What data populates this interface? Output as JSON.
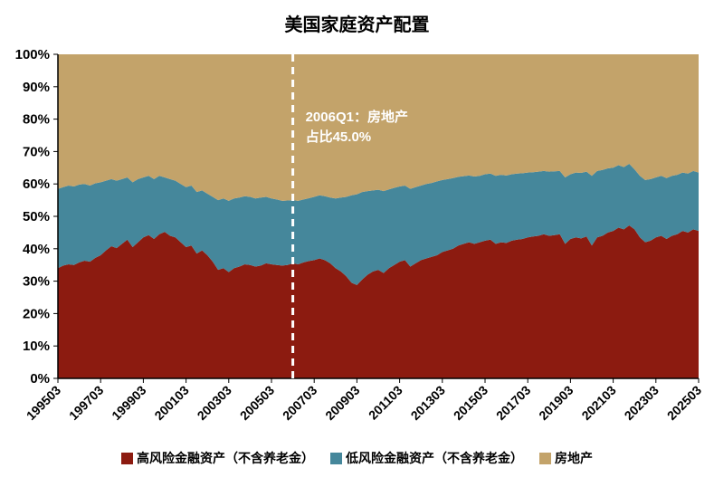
{
  "chart_data": {
    "type": "area",
    "stacked": true,
    "stack_total": 100,
    "title": "美国家庭资产配置",
    "ylim": [
      0,
      100
    ],
    "grid": false,
    "legend_position": "bottom",
    "y_ticks": [
      "0%",
      "10%",
      "20%",
      "30%",
      "40%",
      "50%",
      "60%",
      "70%",
      "80%",
      "90%",
      "100%"
    ],
    "x_start": "199503",
    "x_frequency": "quarterly",
    "x_tick_every": 8,
    "x_tick_labels": [
      "199503",
      "199703",
      "199903",
      "200103",
      "200303",
      "200503",
      "200703",
      "200903",
      "201103",
      "201303",
      "201503",
      "201703",
      "201903",
      "202103",
      "202303",
      "202503"
    ],
    "annotation": {
      "index": 44,
      "x_label": "200603",
      "label_lines": [
        "2006Q1：房地产",
        "占比45.0%"
      ],
      "value": 45.0,
      "line_style": "dashed-white"
    },
    "series": [
      {
        "name": "高风险金融资产（不含养老金）",
        "color": "#8C1B10",
        "values": [
          34.0,
          34.8,
          35.2,
          35.0,
          35.8,
          36.3,
          36.0,
          37.2,
          38.0,
          39.5,
          40.8,
          40.2,
          41.5,
          42.8,
          40.5,
          42.0,
          43.5,
          44.2,
          43.0,
          44.5,
          45.2,
          44.0,
          43.5,
          42.0,
          40.5,
          41.0,
          38.5,
          39.5,
          38.0,
          36.0,
          33.5,
          34.0,
          32.8,
          34.0,
          34.5,
          35.2,
          35.0,
          34.5,
          34.8,
          35.5,
          35.2,
          35.0,
          34.8,
          35.0,
          35.5,
          35.2,
          35.8,
          36.2,
          36.5,
          37.0,
          36.5,
          35.5,
          34.0,
          33.0,
          31.5,
          29.5,
          28.8,
          30.5,
          32.0,
          33.0,
          33.5,
          32.5,
          34.0,
          35.0,
          36.0,
          36.5,
          34.5,
          35.5,
          36.5,
          37.0,
          37.5,
          38.0,
          39.0,
          39.5,
          40.0,
          41.0,
          41.5,
          42.0,
          41.5,
          42.0,
          42.5,
          42.8,
          41.5,
          42.0,
          41.8,
          42.5,
          42.8,
          43.0,
          43.5,
          43.8,
          44.0,
          44.5,
          44.0,
          44.2,
          44.5,
          41.5,
          43.0,
          43.5,
          43.2,
          43.8,
          41.0,
          43.5,
          44.0,
          45.0,
          45.5,
          46.5,
          46.0,
          47.2,
          46.0,
          43.5,
          42.0,
          42.5,
          43.5,
          44.0,
          43.0,
          44.0,
          44.5,
          45.5,
          45.0,
          46.0,
          45.5
        ]
      },
      {
        "name": "低风险金融资产（不含养老金）",
        "color": "#45879B",
        "values": [
          24.5,
          24.2,
          24.3,
          24.2,
          24.0,
          23.7,
          23.5,
          23.0,
          22.5,
          21.5,
          20.7,
          20.8,
          20.0,
          19.2,
          20.0,
          19.5,
          18.5,
          18.3,
          18.5,
          18.0,
          16.8,
          17.5,
          17.5,
          18.0,
          18.5,
          18.5,
          19.0,
          18.5,
          19.0,
          20.0,
          21.5,
          21.5,
          22.0,
          21.5,
          21.3,
          21.0,
          21.0,
          21.0,
          21.0,
          20.5,
          20.3,
          20.2,
          20.0,
          19.9,
          19.5,
          19.6,
          19.4,
          19.4,
          19.5,
          19.5,
          19.7,
          20.3,
          21.5,
          22.8,
          24.5,
          27.0,
          28.0,
          27.0,
          25.8,
          25.0,
          24.7,
          25.3,
          24.3,
          23.8,
          23.2,
          23.0,
          24.0,
          23.5,
          23.0,
          23.0,
          22.8,
          22.8,
          22.2,
          22.0,
          21.8,
          21.2,
          20.9,
          20.6,
          20.8,
          20.5,
          20.5,
          20.4,
          21.0,
          20.8,
          20.8,
          20.5,
          20.4,
          20.3,
          20.0,
          19.8,
          19.8,
          19.5,
          19.8,
          19.7,
          19.5,
          20.5,
          20.0,
          20.0,
          20.2,
          20.0,
          21.5,
          20.5,
          20.3,
          19.8,
          19.5,
          19.3,
          19.2,
          19.0,
          18.5,
          19.0,
          19.2,
          19.0,
          18.5,
          18.5,
          18.8,
          18.5,
          18.3,
          18.0,
          18.2,
          18.0,
          18.0
        ]
      },
      {
        "name": "房地产",
        "color": "#C3A36A",
        "values": [
          41.5,
          41.0,
          40.5,
          40.8,
          40.2,
          40.0,
          40.5,
          39.8,
          39.5,
          39.0,
          38.5,
          39.0,
          38.5,
          38.0,
          39.5,
          38.5,
          38.0,
          37.5,
          38.5,
          37.5,
          38.0,
          38.5,
          39.0,
          40.0,
          41.0,
          40.5,
          42.5,
          42.0,
          43.0,
          44.0,
          45.0,
          44.5,
          45.2,
          44.5,
          44.2,
          43.8,
          44.0,
          44.5,
          44.2,
          44.0,
          44.5,
          44.8,
          45.2,
          45.1,
          45.0,
          45.2,
          44.8,
          44.4,
          44.0,
          43.5,
          43.8,
          44.2,
          44.5,
          44.2,
          44.0,
          43.5,
          43.2,
          42.5,
          42.2,
          42.0,
          41.8,
          42.2,
          41.7,
          41.2,
          40.8,
          40.5,
          41.5,
          41.0,
          40.5,
          40.0,
          39.7,
          39.2,
          38.8,
          38.5,
          38.2,
          37.8,
          37.6,
          37.4,
          37.7,
          37.5,
          37.0,
          36.8,
          37.5,
          37.2,
          37.4,
          37.0,
          36.8,
          36.7,
          36.5,
          36.4,
          36.2,
          36.0,
          36.2,
          36.1,
          36.0,
          38.0,
          37.0,
          36.5,
          36.6,
          36.2,
          37.5,
          36.0,
          35.7,
          35.2,
          35.0,
          34.2,
          34.8,
          33.8,
          35.5,
          37.5,
          38.8,
          38.5,
          38.0,
          37.5,
          38.2,
          37.5,
          37.2,
          36.5,
          36.8,
          36.0,
          36.5
        ]
      }
    ]
  }
}
